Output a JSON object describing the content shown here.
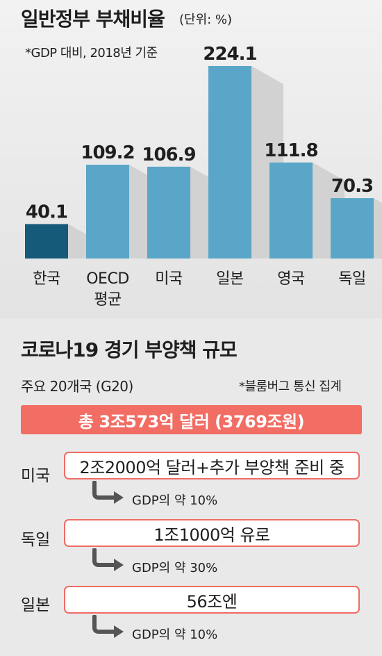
{
  "debt_section": {
    "title": "일반정부 부채비율",
    "unit": "(단위: %)",
    "note": "*GDP 대비, 2018년 기준"
  },
  "chart_data": {
    "type": "bar",
    "title": "일반정부 부채비율",
    "unit": "(단위: %)",
    "categories": [
      "한국",
      "OECD 평균",
      "미국",
      "일본",
      "영국",
      "독일"
    ],
    "category_lines": [
      [
        "한국"
      ],
      [
        "OECD",
        "평균"
      ],
      [
        "미국"
      ],
      [
        "일본"
      ],
      [
        "영국"
      ],
      [
        "독일"
      ]
    ],
    "values": [
      40.1,
      109.2,
      106.9,
      224.1,
      111.8,
      70.3
    ],
    "value_labels": [
      "40.1",
      "109.2",
      "106.9",
      "224.1",
      "111.8",
      "70.3"
    ],
    "highlight_index": 0,
    "ylim": [
      0,
      224.1
    ],
    "grid": false,
    "colors": {
      "highlight": "#155a78",
      "default": "#5aa6c8",
      "shadow": "#d2d2d2"
    }
  },
  "stimulus_section": {
    "title": "코로나19 경기 부양책 규모",
    "g20_label": "주요 20개국 (G20)",
    "source": "*블룸버그 통신 집계",
    "total": "총 3조573억 달러 (3769조원)",
    "rows": [
      {
        "country": "미국",
        "amount": "2조2000억 달러+추가 부양책 준비 중",
        "gdp": "GDP의 약 10%"
      },
      {
        "country": "독일",
        "amount": "1조1000억 유로",
        "gdp": "GDP의 약 30%"
      },
      {
        "country": "일본",
        "amount": "56조엔",
        "gdp": "GDP의 약 10%"
      }
    ],
    "colors": {
      "accent": "#f26d64",
      "arrow": "#555555"
    }
  }
}
